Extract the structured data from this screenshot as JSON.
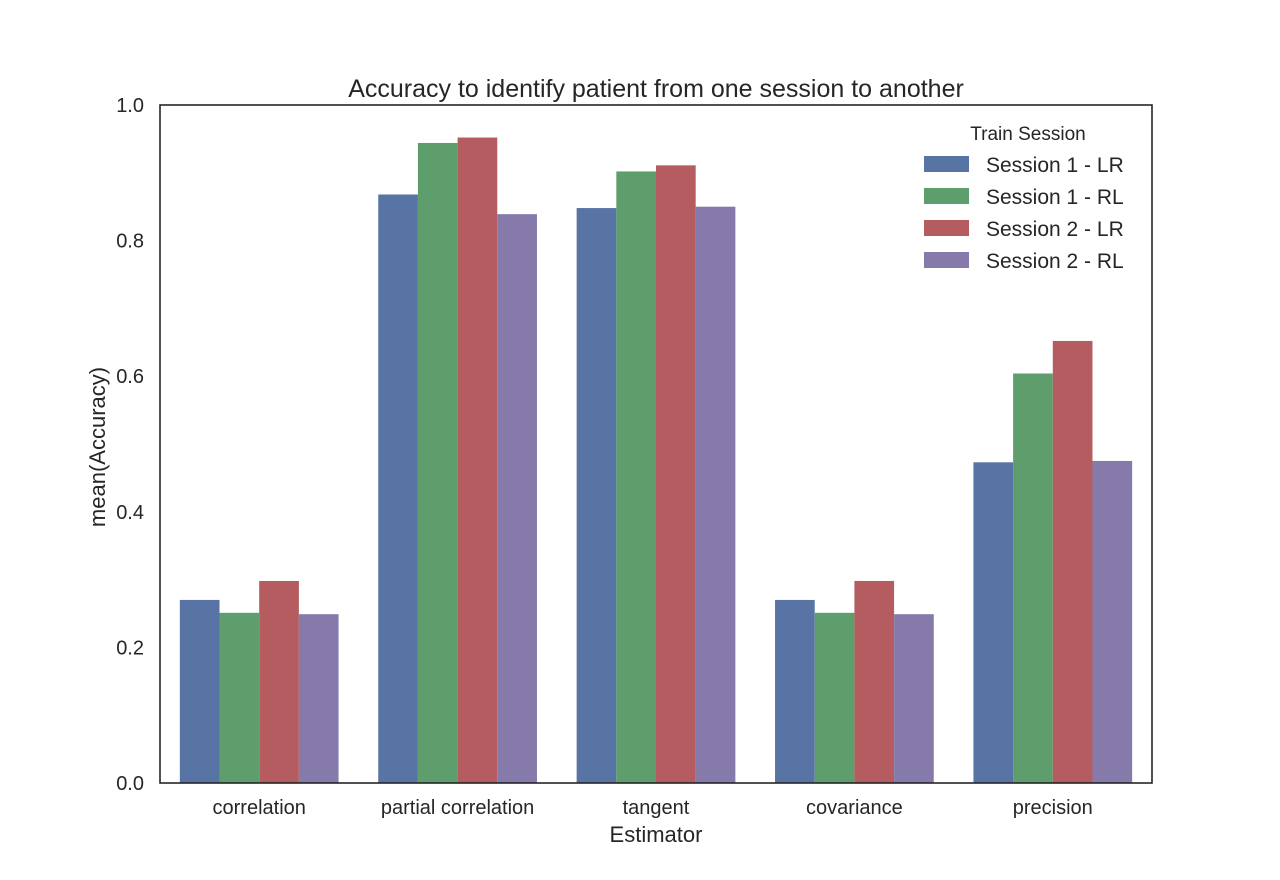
{
  "chart_data": {
    "type": "bar",
    "title": "Accuracy to identify patient from one session to another",
    "xlabel": "Estimator",
    "ylabel": "mean(Accuracy)",
    "ylim": [
      0,
      1.0
    ],
    "yticks": [
      "0.0",
      "0.2",
      "0.4",
      "0.6",
      "0.8",
      "1.0"
    ],
    "grid": false,
    "categories": [
      "correlation",
      "partial correlation",
      "tangent",
      "covariance",
      "precision"
    ],
    "legend": {
      "title": "Train Session",
      "placement": "top-right"
    },
    "series": [
      {
        "name": "Session 1 - LR",
        "color": "#5874a5",
        "values": [
          0.27,
          0.868,
          0.848,
          0.27,
          0.473
        ]
      },
      {
        "name": "Session 1 - RL",
        "color": "#5e9e6c",
        "values": [
          0.251,
          0.944,
          0.902,
          0.251,
          0.604
        ]
      },
      {
        "name": "Session 2 - LR",
        "color": "#b55c60",
        "values": [
          0.298,
          0.952,
          0.911,
          0.298,
          0.652
        ]
      },
      {
        "name": "Session 2 - RL",
        "color": "#857aaa",
        "values": [
          0.249,
          0.839,
          0.85,
          0.249,
          0.475
        ]
      }
    ]
  }
}
